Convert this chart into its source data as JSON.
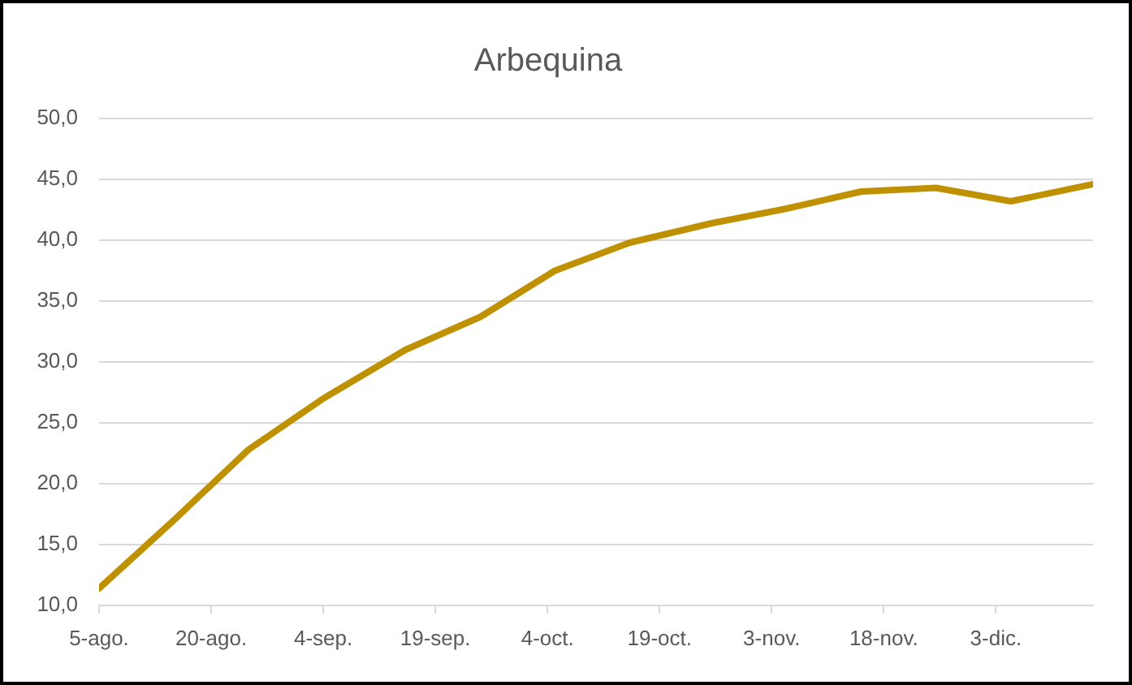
{
  "chart_data": {
    "type": "line",
    "title": "Arbequina",
    "x": [
      "--08-05",
      "--08-15",
      "--08-25",
      "--09-04",
      "--09-15",
      "--09-25",
      "--10-05",
      "--10-15",
      "--10-26",
      "--11-05",
      "--11-15",
      "--11-25",
      "--12-05",
      "--12-16"
    ],
    "series": [
      {
        "color": "#bf9000",
        "values": [
          11.4,
          17.0,
          22.8,
          27.0,
          31.0,
          33.7,
          37.5,
          39.8,
          41.4,
          42.6,
          44.0,
          44.3,
          43.2,
          44.6
        ]
      }
    ],
    "xlim": [
      "--08-05",
      "--12-16"
    ],
    "xticks": [
      {
        "value": "--08-05",
        "label": "5-ago."
      },
      {
        "value": "--08-20",
        "label": "20-ago."
      },
      {
        "value": "--09-04",
        "label": "4-sep."
      },
      {
        "value": "--09-19",
        "label": "19-sep."
      },
      {
        "value": "--10-04",
        "label": "4-oct."
      },
      {
        "value": "--10-19",
        "label": "19-oct."
      },
      {
        "value": "--11-03",
        "label": "3-nov."
      },
      {
        "value": "--11-18",
        "label": "18-nov."
      },
      {
        "value": "--12-03",
        "label": "3-dic."
      }
    ],
    "ylim": [
      10,
      50
    ],
    "yticks": [
      {
        "value": 10,
        "label": "10,0"
      },
      {
        "value": 15,
        "label": "15,0"
      },
      {
        "value": 20,
        "label": "20,0"
      },
      {
        "value": 25,
        "label": "25,0"
      },
      {
        "value": 30,
        "label": "30,0"
      },
      {
        "value": 35,
        "label": "35,0"
      },
      {
        "value": 40,
        "label": "40,0"
      },
      {
        "value": 45,
        "label": "45,0"
      },
      {
        "value": 50,
        "label": "50,0"
      }
    ],
    "grid": "y",
    "marker": "none",
    "line_style": "solid"
  }
}
